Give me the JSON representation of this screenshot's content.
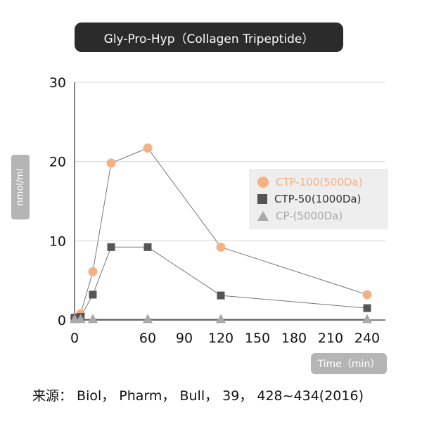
{
  "chart_data": {
    "type": "scatter",
    "title": "Gly-Pro-Hyp（Collagen Tripeptide）",
    "ylabel": "nmol/ml",
    "xlabel": "Time（min）",
    "xlim": [
      0,
      255
    ],
    "ylim": [
      0,
      30
    ],
    "xticks": [
      0,
      60,
      90,
      120,
      150,
      180,
      210,
      240
    ],
    "yticks": [
      0,
      10,
      20,
      30
    ],
    "grid": "horizontal",
    "legend_position": "right",
    "series": [
      {
        "name": "CTP-100(500Da)",
        "color": "#f5b184",
        "marker": "circle",
        "x": [
          0,
          5,
          15,
          30,
          60,
          120,
          240
        ],
        "y": [
          0.3,
          0.8,
          6.1,
          19.8,
          21.7,
          9.2,
          3.2
        ]
      },
      {
        "name": "CTP-50(1000Da)",
        "color": "#555555",
        "marker": "square",
        "x": [
          0,
          5,
          15,
          30,
          60,
          120,
          240
        ],
        "y": [
          0.3,
          0.4,
          3.2,
          9.2,
          9.2,
          3.1,
          1.5
        ]
      },
      {
        "name": "CP-(5000Da)",
        "color": "#a9a9a9",
        "marker": "triangle",
        "x": [
          0,
          5,
          15,
          60,
          120,
          240
        ],
        "y": [
          0.1,
          0.1,
          0.1,
          0.1,
          0.1,
          0.1
        ]
      }
    ]
  },
  "source_text": "来源： Biol， Pharm， Bull， 39， 428~434(2016)",
  "colors": {
    "title_bg": "#2b2b2b",
    "pill_bg": "#b5b5b5",
    "grid": "#d6d6d6",
    "legend_bg": "#eeeeee"
  }
}
